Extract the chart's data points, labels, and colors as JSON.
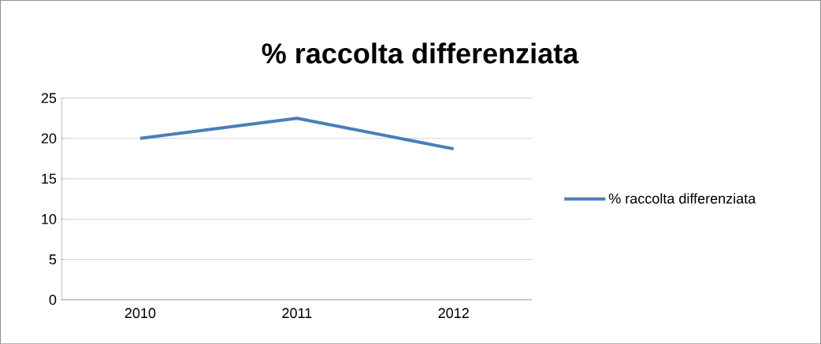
{
  "chart_data": {
    "type": "line",
    "title": "% raccolta differenziata",
    "categories": [
      "2010",
      "2011",
      "2012"
    ],
    "series": [
      {
        "name": "% raccolta differenziata",
        "color": "#4a7ebb",
        "values": [
          20.0,
          22.5,
          18.7
        ]
      }
    ],
    "ylim": [
      0,
      25
    ],
    "yticks": [
      0,
      5,
      10,
      15,
      20,
      25
    ],
    "grid": "y",
    "legend": "right"
  }
}
